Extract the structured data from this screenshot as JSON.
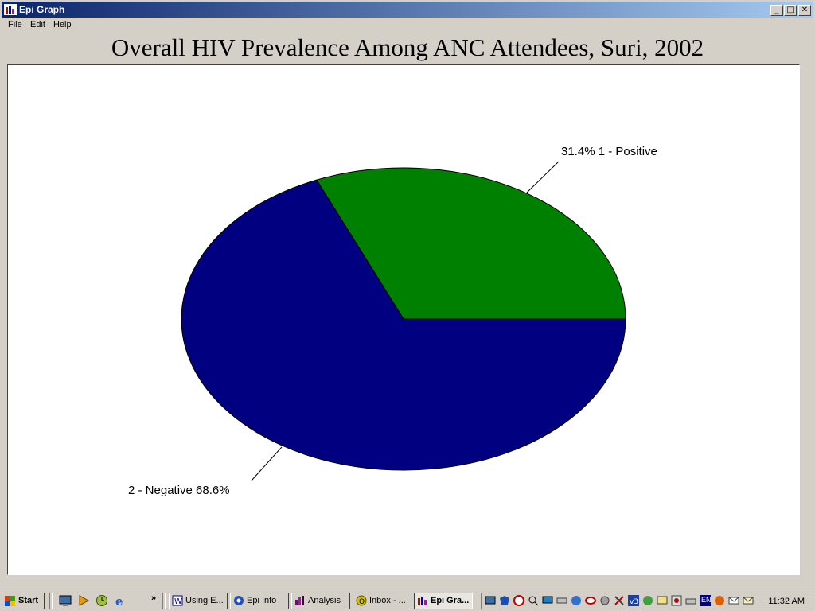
{
  "window": {
    "title": "Epi Graph",
    "controls": {
      "minimize": "_",
      "maximize": "□",
      "close": "✕"
    }
  },
  "menu": [
    "File",
    "Edit",
    "Help"
  ],
  "chart_data": {
    "type": "pie",
    "title": "Overall HIV Prevalence Among ANC Attendees, Suri, 2002",
    "slices": [
      {
        "label": "1 - Positive",
        "value": 31.4,
        "display": "31.4% 1 - Positive",
        "color": "#008000"
      },
      {
        "label": "2 - Negative",
        "value": 68.6,
        "display": "2 - Negative 68.6%",
        "color": "#000080"
      }
    ]
  },
  "taskbar": {
    "start_label": "Start",
    "quick_launch": [
      "desktop-icon",
      "media-player-icon",
      "clock-app-icon",
      "internet-explorer-icon"
    ],
    "more_label": "»",
    "tasks": [
      {
        "label": "Using E...",
        "icon": "word-icon",
        "active": false
      },
      {
        "label": "Epi Info",
        "icon": "epi-info-icon",
        "active": false
      },
      {
        "label": "Analysis",
        "icon": "analysis-icon",
        "active": false
      },
      {
        "label": "Inbox - ...",
        "icon": "outlook-icon",
        "active": false
      },
      {
        "label": "Epi Gra...",
        "icon": "epi-graph-icon",
        "active": true
      }
    ],
    "tray_language": "EN",
    "clock": "11:32 AM"
  },
  "colors": {
    "title_gradient_start": "#0a246a",
    "title_gradient_end": "#a6caf0",
    "positive": "#008000",
    "negative": "#000080"
  }
}
